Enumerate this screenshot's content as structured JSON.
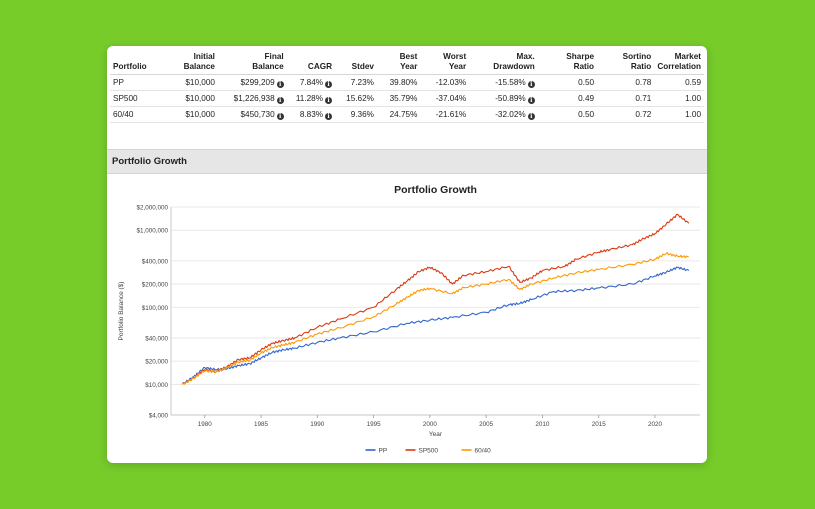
{
  "table": {
    "headers": [
      [
        "Portfolio"
      ],
      [
        "Initial",
        "Balance"
      ],
      [
        "Final",
        "Balance"
      ],
      [
        "CAGR"
      ],
      [
        "Stdev"
      ],
      [
        "Best",
        "Year"
      ],
      [
        "Worst",
        "Year"
      ],
      [
        "Max.",
        "Drawdown"
      ],
      [
        "Sharpe",
        "Ratio"
      ],
      [
        "Sortino",
        "Ratio"
      ],
      [
        "Market",
        "Correlation"
      ]
    ],
    "rows": [
      {
        "portfolio": "PP",
        "initial": "$10,000",
        "final": "$299,209",
        "cagr": "7.84%",
        "stdev": "7.23%",
        "best": "39.80%",
        "worst": "-12.03%",
        "drawdown": "-15.58%",
        "sharpe": "0.50",
        "sortino": "0.78",
        "corr": "0.59"
      },
      {
        "portfolio": "SP500",
        "initial": "$10,000",
        "final": "$1,226,938",
        "cagr": "11.28%",
        "stdev": "15.62%",
        "best": "35.79%",
        "worst": "-37.04%",
        "drawdown": "-50.89%",
        "sharpe": "0.49",
        "sortino": "0.71",
        "corr": "1.00"
      },
      {
        "portfolio": "60/40",
        "initial": "$10,000",
        "final": "$450,730",
        "cagr": "8.83%",
        "stdev": "9.36%",
        "best": "24.75%",
        "worst": "-21.61%",
        "drawdown": "-32.02%",
        "sharpe": "0.50",
        "sortino": "0.72",
        "corr": "1.00"
      }
    ]
  },
  "section": {
    "title": "Portfolio Growth"
  },
  "chart_data": {
    "type": "line",
    "title": "Portfolio Growth",
    "xlabel": "Year",
    "ylabel": "Portfolio Balance ($)",
    "yscale": "log",
    "ylim": [
      4000,
      2000000
    ],
    "xlim": [
      1977,
      2024
    ],
    "x_ticks": [
      1980,
      1985,
      1990,
      1995,
      2000,
      2005,
      2010,
      2015,
      2020
    ],
    "y_ticks": [
      {
        "value": 4000,
        "label": "$4,000"
      },
      {
        "value": 10000,
        "label": "$10,000"
      },
      {
        "value": 20000,
        "label": "$20,000"
      },
      {
        "value": 40000,
        "label": "$40,000"
      },
      {
        "value": 100000,
        "label": "$100,000"
      },
      {
        "value": 200000,
        "label": "$200,000"
      },
      {
        "value": 400000,
        "label": "$400,000"
      },
      {
        "value": 1000000,
        "label": "$1,000,000"
      },
      {
        "value": 2000000,
        "label": "$2,000,000"
      }
    ],
    "grid": true,
    "legend": "bottom",
    "series": [
      {
        "name": "PP",
        "color": "#3366cc",
        "x": [
          1978,
          1979,
          1980,
          1981,
          1982,
          1983,
          1984,
          1985,
          1986,
          1987,
          1988,
          1990,
          1992,
          1995,
          1998,
          2000,
          2002,
          2005,
          2007,
          2008,
          2009,
          2011,
          2013,
          2015,
          2018,
          2020,
          2021,
          2022,
          2023
        ],
        "values": [
          10000,
          12500,
          16500,
          15500,
          16000,
          17500,
          18500,
          22000,
          26000,
          28000,
          29500,
          35000,
          40000,
          48000,
          62000,
          68000,
          74000,
          86000,
          108000,
          112000,
          126000,
          160000,
          165000,
          178000,
          200000,
          255000,
          285000,
          330000,
          299000
        ]
      },
      {
        "name": "SP500",
        "color": "#dc3912",
        "x": [
          1978,
          1979,
          1980,
          1981,
          1982,
          1983,
          1984,
          1985,
          1986,
          1987,
          1988,
          1990,
          1992,
          1995,
          1997,
          1998,
          1999,
          2000,
          2001,
          2002,
          2003,
          2005,
          2007,
          2008,
          2009,
          2010,
          2012,
          2013,
          2015,
          2016,
          2018,
          2019,
          2020,
          2021,
          2022,
          2023
        ],
        "values": [
          10000,
          12000,
          15500,
          14500,
          17000,
          21000,
          22000,
          28000,
          34000,
          37000,
          40000,
          55000,
          70000,
          100000,
          170000,
          220000,
          290000,
          330000,
          280000,
          200000,
          260000,
          290000,
          340000,
          210000,
          240000,
          300000,
          340000,
          420000,
          520000,
          560000,
          650000,
          780000,
          900000,
          1200000,
          1600000,
          1226938
        ]
      },
      {
        "name": "60/40",
        "color": "#ff9900",
        "x": [
          1978,
          1979,
          1980,
          1981,
          1982,
          1983,
          1984,
          1985,
          1986,
          1987,
          1988,
          1990,
          1992,
          1995,
          1997,
          1998,
          1999,
          2000,
          2002,
          2003,
          2005,
          2007,
          2008,
          2009,
          2011,
          2013,
          2015,
          2018,
          2020,
          2021,
          2022,
          2023
        ],
        "values": [
          10000,
          12000,
          15000,
          14500,
          16500,
          19500,
          20500,
          25500,
          30000,
          32500,
          35000,
          45000,
          54000,
          75000,
          110000,
          135000,
          165000,
          175000,
          150000,
          180000,
          200000,
          230000,
          170000,
          200000,
          240000,
          280000,
          310000,
          360000,
          420000,
          500000,
          460000,
          450730
        ]
      }
    ]
  }
}
